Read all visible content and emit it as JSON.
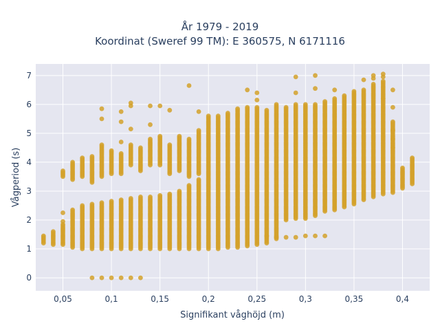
{
  "chart_data": {
    "type": "scatter",
    "title_line1": "År 1979 - 2019",
    "title_line2": "Koordinat (Sweref 99 TM): E 360575, N 6171116",
    "xlabel": "Signifikant våghöjd (m)",
    "ylabel": "Vågperiod (s)",
    "xlim": [
      0.022,
      0.428
    ],
    "ylim": [
      -0.45,
      7.4
    ],
    "xticks": [
      0.05,
      0.1,
      0.15,
      0.2,
      0.25,
      0.3,
      0.35,
      0.4
    ],
    "xtick_labels": [
      "0,05",
      "0,1",
      "0,15",
      "0,2",
      "0,25",
      "0,3",
      "0,35",
      "0,4"
    ],
    "yticks": [
      0,
      1,
      2,
      3,
      4,
      5,
      6,
      7
    ],
    "ytick_labels": [
      "0",
      "1",
      "2",
      "3",
      "4",
      "5",
      "6",
      "7"
    ],
    "grid": true,
    "marker_color": "#d4a12a",
    "plot_background": "#e5e6f0",
    "columns": [
      {
        "x": 0.03,
        "min": 1.2,
        "max": 1.45
      },
      {
        "x": 0.04,
        "min": 1.15,
        "max": 1.6
      },
      {
        "x": 0.05,
        "min": 1.15,
        "max": 1.85
      },
      {
        "x": 0.06,
        "min": 1.05,
        "max": 2.35
      },
      {
        "x": 0.07,
        "min": 1.0,
        "max": 2.5
      },
      {
        "x": 0.08,
        "min": 1.0,
        "max": 2.55
      },
      {
        "x": 0.09,
        "min": 1.0,
        "max": 2.6
      },
      {
        "x": 0.1,
        "min": 1.0,
        "max": 2.65
      },
      {
        "x": 0.11,
        "min": 1.0,
        "max": 2.7
      },
      {
        "x": 0.12,
        "min": 1.0,
        "max": 2.75
      },
      {
        "x": 0.13,
        "min": 1.0,
        "max": 2.8
      },
      {
        "x": 0.14,
        "min": 1.0,
        "max": 2.8
      },
      {
        "x": 0.15,
        "min": 1.0,
        "max": 2.85
      },
      {
        "x": 0.16,
        "min": 1.0,
        "max": 2.9
      },
      {
        "x": 0.17,
        "min": 1.0,
        "max": 3.0
      },
      {
        "x": 0.18,
        "min": 1.0,
        "max": 3.2
      },
      {
        "x": 0.19,
        "min": 1.0,
        "max": 3.4
      },
      {
        "x": 0.2,
        "min": 1.0,
        "max": 5.6
      },
      {
        "x": 0.21,
        "min": 1.0,
        "max": 5.6
      },
      {
        "x": 0.22,
        "min": 1.05,
        "max": 5.7
      },
      {
        "x": 0.23,
        "min": 1.05,
        "max": 5.85
      },
      {
        "x": 0.24,
        "min": 1.1,
        "max": 5.9
      },
      {
        "x": 0.25,
        "min": 1.15,
        "max": 5.9
      },
      {
        "x": 0.26,
        "min": 1.2,
        "max": 5.8
      },
      {
        "x": 0.27,
        "min": 1.35,
        "max": 6.0
      },
      {
        "x": 0.28,
        "min": 2.0,
        "max": 5.9
      },
      {
        "x": 0.29,
        "min": 2.05,
        "max": 6.0
      },
      {
        "x": 0.3,
        "min": 2.1,
        "max": 6.0
      },
      {
        "x": 0.31,
        "min": 2.2,
        "max": 6.0
      },
      {
        "x": 0.32,
        "min": 2.3,
        "max": 6.1
      },
      {
        "x": 0.33,
        "min": 2.35,
        "max": 6.2
      },
      {
        "x": 0.34,
        "min": 2.45,
        "max": 6.3
      },
      {
        "x": 0.35,
        "min": 2.55,
        "max": 6.45
      },
      {
        "x": 0.36,
        "min": 2.7,
        "max": 6.5
      },
      {
        "x": 0.37,
        "min": 2.8,
        "max": 6.7
      },
      {
        "x": 0.38,
        "min": 2.9,
        "max": 6.8
      },
      {
        "x": 0.39,
        "min": 2.95,
        "max": 5.4
      },
      {
        "x": 0.4,
        "min": 3.1,
        "max": 3.8
      },
      {
        "x": 0.41,
        "min": 3.25,
        "max": 4.15
      }
    ],
    "upper_columns": [
      {
        "x": 0.05,
        "min": 3.5,
        "max": 3.7
      },
      {
        "x": 0.06,
        "min": 3.4,
        "max": 4.0
      },
      {
        "x": 0.07,
        "min": 3.5,
        "max": 4.15
      },
      {
        "x": 0.08,
        "min": 3.3,
        "max": 4.2
      },
      {
        "x": 0.09,
        "min": 3.5,
        "max": 4.6
      },
      {
        "x": 0.1,
        "min": 3.6,
        "max": 4.4
      },
      {
        "x": 0.11,
        "min": 3.6,
        "max": 4.3
      },
      {
        "x": 0.12,
        "min": 3.9,
        "max": 4.6
      },
      {
        "x": 0.13,
        "min": 3.7,
        "max": 4.5
      },
      {
        "x": 0.14,
        "min": 3.9,
        "max": 4.8
      },
      {
        "x": 0.15,
        "min": 3.9,
        "max": 4.9
      },
      {
        "x": 0.16,
        "min": 3.6,
        "max": 4.6
      },
      {
        "x": 0.17,
        "min": 3.7,
        "max": 4.9
      },
      {
        "x": 0.18,
        "min": 3.5,
        "max": 4.8
      },
      {
        "x": 0.19,
        "min": 3.6,
        "max": 5.1
      }
    ],
    "extra_points": [
      {
        "x": 0.08,
        "y": 0
      },
      {
        "x": 0.09,
        "y": 0
      },
      {
        "x": 0.1,
        "y": 0
      },
      {
        "x": 0.11,
        "y": 0
      },
      {
        "x": 0.12,
        "y": 0
      },
      {
        "x": 0.13,
        "y": 0
      },
      {
        "x": 0.09,
        "y": 5.85
      },
      {
        "x": 0.09,
        "y": 5.5
      },
      {
        "x": 0.11,
        "y": 5.75
      },
      {
        "x": 0.11,
        "y": 5.4
      },
      {
        "x": 0.12,
        "y": 6.05
      },
      {
        "x": 0.12,
        "y": 5.95
      },
      {
        "x": 0.14,
        "y": 5.95
      },
      {
        "x": 0.15,
        "y": 5.95
      },
      {
        "x": 0.16,
        "y": 5.8
      },
      {
        "x": 0.18,
        "y": 6.65
      },
      {
        "x": 0.12,
        "y": 5.15
      },
      {
        "x": 0.14,
        "y": 5.3
      },
      {
        "x": 0.11,
        "y": 4.7
      },
      {
        "x": 0.05,
        "y": 2.25
      },
      {
        "x": 0.05,
        "y": 1.95
      },
      {
        "x": 0.19,
        "y": 5.75
      },
      {
        "x": 0.24,
        "y": 6.5
      },
      {
        "x": 0.25,
        "y": 6.4
      },
      {
        "x": 0.25,
        "y": 6.15
      },
      {
        "x": 0.29,
        "y": 6.95
      },
      {
        "x": 0.29,
        "y": 6.4
      },
      {
        "x": 0.31,
        "y": 7.0
      },
      {
        "x": 0.31,
        "y": 6.55
      },
      {
        "x": 0.33,
        "y": 6.5
      },
      {
        "x": 0.36,
        "y": 6.85
      },
      {
        "x": 0.37,
        "y": 7.0
      },
      {
        "x": 0.37,
        "y": 6.9
      },
      {
        "x": 0.38,
        "y": 7.05
      },
      {
        "x": 0.38,
        "y": 6.95
      },
      {
        "x": 0.39,
        "y": 6.5
      },
      {
        "x": 0.38,
        "y": 6.2
      },
      {
        "x": 0.39,
        "y": 5.9
      },
      {
        "x": 0.39,
        "y": 5.1
      },
      {
        "x": 0.39,
        "y": 4.8
      },
      {
        "x": 0.39,
        "y": 4.5
      },
      {
        "x": 0.26,
        "y": 1.45
      },
      {
        "x": 0.27,
        "y": 1.4
      },
      {
        "x": 0.28,
        "y": 1.4
      },
      {
        "x": 0.29,
        "y": 1.4
      },
      {
        "x": 0.3,
        "y": 1.45
      },
      {
        "x": 0.31,
        "y": 1.45
      },
      {
        "x": 0.32,
        "y": 1.45
      },
      {
        "x": 0.31,
        "y": 2.15
      },
      {
        "x": 0.3,
        "y": 2.05
      }
    ]
  }
}
